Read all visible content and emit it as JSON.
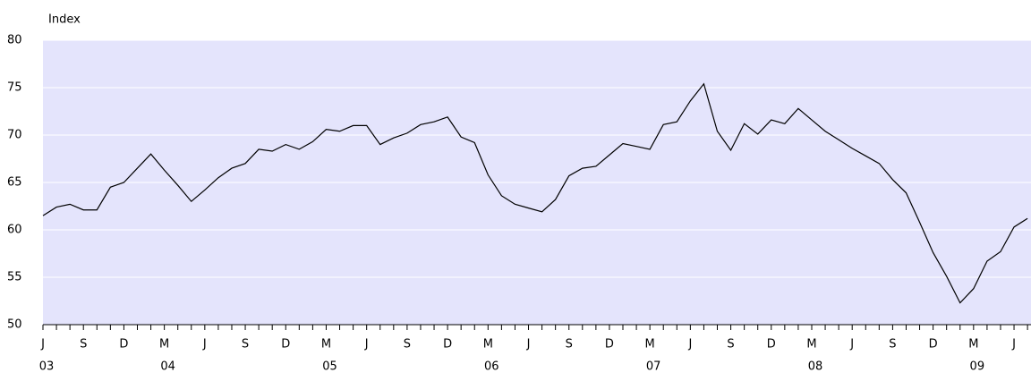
{
  "chart_data": {
    "type": "line",
    "y_axis_label": "Index",
    "categories": [
      "J",
      null,
      null,
      "S",
      null,
      null,
      "D",
      null,
      null,
      "M",
      null,
      null,
      "J",
      null,
      null,
      "S",
      null,
      null,
      "D",
      null,
      null,
      "M",
      null,
      null,
      "J",
      null,
      null,
      "S",
      null,
      null,
      "D",
      null,
      null,
      "M",
      null,
      null,
      "J",
      null,
      null,
      "S",
      null,
      null,
      "D",
      null,
      null,
      "M",
      null,
      null,
      "J",
      null,
      null,
      "S",
      null,
      null,
      "D",
      null,
      null,
      "M",
      null,
      null,
      "J",
      null,
      null,
      "S",
      null,
      null,
      "D",
      null,
      null,
      "M",
      null,
      null,
      "J",
      null
    ],
    "year_labels": [
      {
        "value": 0,
        "label": "03"
      },
      {
        "value": 9,
        "label": "04"
      },
      {
        "value": 21,
        "label": "05"
      },
      {
        "value": 33,
        "label": "06"
      },
      {
        "value": 45,
        "label": "07"
      },
      {
        "value": 57,
        "label": "08"
      },
      {
        "value": 69,
        "label": "09"
      }
    ],
    "series": [
      {
        "name": "Index",
        "color": "#000000",
        "values": [
          61.5,
          62.4,
          62.7,
          62.1,
          62.1,
          64.5,
          65.0,
          66.5,
          68.0,
          66.3,
          64.7,
          63.0,
          64.2,
          65.5,
          66.5,
          67.0,
          68.5,
          68.3,
          69.0,
          68.5,
          69.3,
          70.6,
          70.4,
          71.0,
          71.0,
          69.0,
          69.7,
          70.2,
          71.1,
          71.4,
          71.9,
          69.8,
          69.2,
          65.8,
          63.6,
          62.7,
          62.3,
          61.9,
          63.2,
          65.7,
          66.5,
          66.7,
          67.9,
          69.1,
          68.8,
          68.5,
          71.1,
          71.4,
          73.6,
          75.4,
          70.4,
          68.4,
          71.2,
          70.1,
          71.6,
          71.2,
          72.8,
          71.6,
          70.4,
          69.5,
          68.6,
          67.8,
          67.0,
          65.3,
          63.9,
          60.8,
          57.6,
          55.1,
          52.3,
          53.8,
          56.7,
          57.7,
          60.3,
          61.2
        ]
      }
    ],
    "ylim": [
      50,
      80
    ],
    "yticks": [
      50,
      55,
      60,
      65,
      70,
      75,
      80
    ],
    "grid": true,
    "plot_background": "#e4e4fc"
  }
}
